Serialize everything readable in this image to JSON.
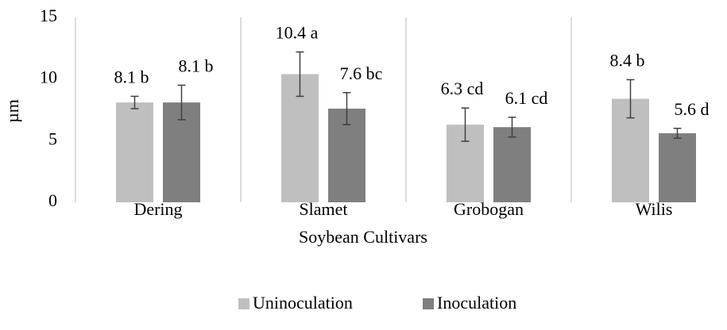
{
  "chart_data": {
    "type": "bar",
    "categories": [
      "Dering",
      "Slamet",
      "Grobogan",
      "Wilis"
    ],
    "series": [
      {
        "name": "Uninoculation",
        "color": "#bfbfbf",
        "values": [
          8.1,
          10.4,
          6.3,
          8.4
        ],
        "errors": [
          0.5,
          1.8,
          1.35,
          1.55
        ],
        "value_labels": [
          "8.1 b",
          "10.4 a",
          "6.3 cd",
          "8.4 b"
        ]
      },
      {
        "name": "Inoculation",
        "color": "#7f7f7f",
        "values": [
          8.1,
          7.6,
          6.1,
          5.6
        ],
        "errors": [
          1.4,
          1.3,
          0.8,
          0.4
        ],
        "value_labels": [
          "8.1 b",
          "7.6 bc",
          "6.1 cd",
          "5.6 d"
        ]
      }
    ],
    "ylabel": "µm",
    "xlabel": "Soybean Cultivars",
    "ylim": [
      0,
      15
    ],
    "yticks": [
      0,
      5,
      10,
      15
    ],
    "legend": "bottom",
    "grid": false
  }
}
